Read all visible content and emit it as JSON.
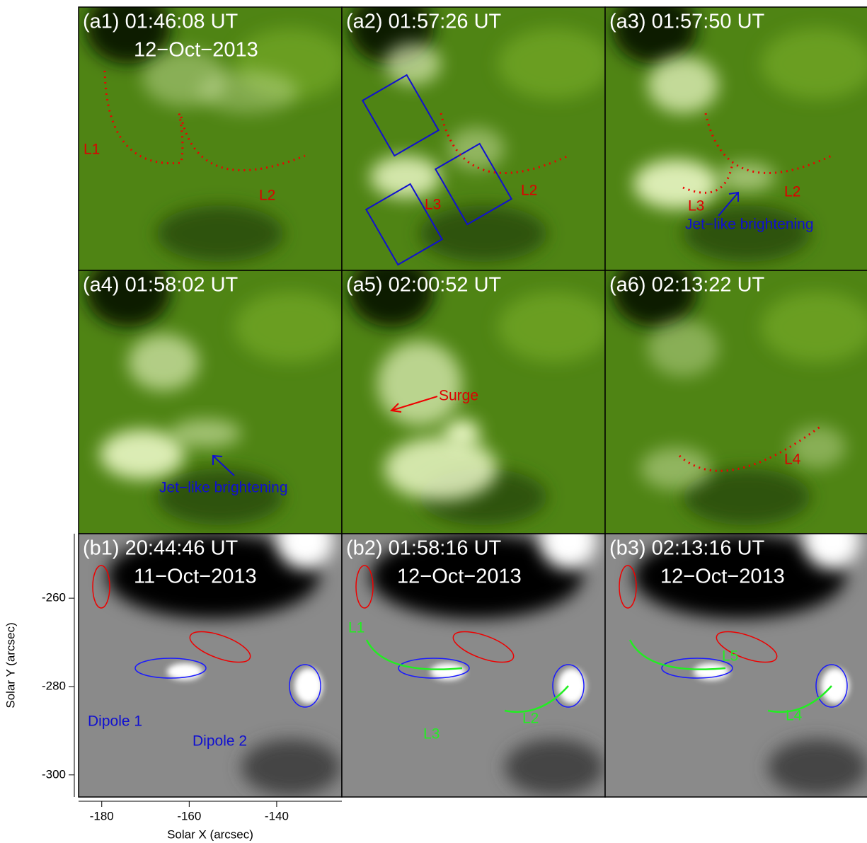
{
  "panels": [
    {
      "label": "(a1) 01:46:08 UT",
      "date": "12−Oct−2013",
      "annotations": [
        "L1",
        "L2"
      ]
    },
    {
      "label": "(a2) 01:57:26 UT",
      "annotations": [
        "L2",
        "L3"
      ]
    },
    {
      "label": "(a3) 01:57:50 UT",
      "annotations": [
        "L3",
        "L2",
        "Jet−like brightening"
      ]
    },
    {
      "label": "(a4) 01:58:02 UT",
      "annotations": [
        "Jet−like brightening"
      ]
    },
    {
      "label": "(a5) 02:00:52 UT",
      "annotations": [
        "Surge"
      ]
    },
    {
      "label": "(a6) 02:13:22 UT",
      "annotations": [
        "L4"
      ]
    },
    {
      "label": "(b1) 20:44:46 UT",
      "date": "11−Oct−2013",
      "annotations": [
        "Dipole 1",
        "Dipole 2"
      ]
    },
    {
      "label": "(b2) 01:58:16 UT",
      "date": "12−Oct−2013",
      "annotations": [
        "L1",
        "L2",
        "L3"
      ]
    },
    {
      "label": "(b3) 02:13:16 UT",
      "date": "12−Oct−2013",
      "annotations": [
        "L5",
        "L4"
      ]
    }
  ],
  "x_axis": {
    "label": "Solar X (arcsec)",
    "lim": [
      -185.3,
      -125.1
    ],
    "ticks": [
      -180,
      -160,
      -140
    ]
  },
  "y_axis": {
    "label": "Solar Y (arcsec)",
    "lim": [
      -305,
      -245.4
    ],
    "ticks": [
      -260,
      -280,
      -300
    ]
  }
}
